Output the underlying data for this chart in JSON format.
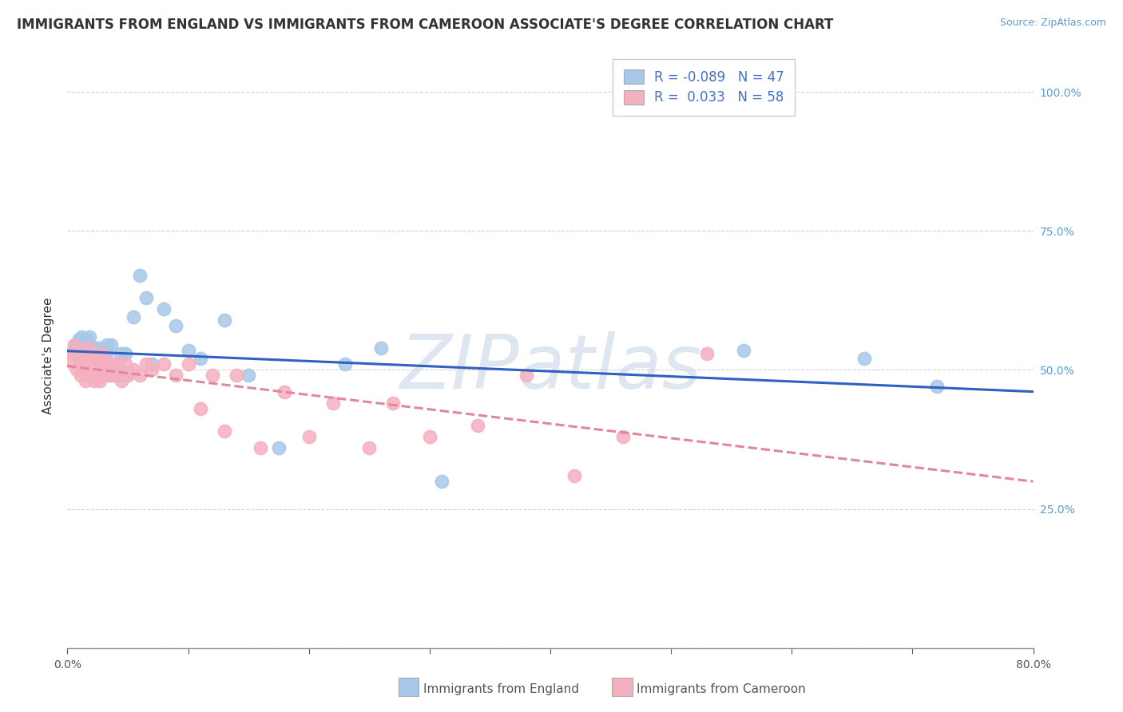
{
  "title": "IMMIGRANTS FROM ENGLAND VS IMMIGRANTS FROM CAMEROON ASSOCIATE'S DEGREE CORRELATION CHART",
  "source_text": "Source: ZipAtlas.com",
  "ylabel": "Associate's Degree",
  "xlim": [
    0.0,
    0.8
  ],
  "ylim": [
    0.0,
    1.05
  ],
  "legend_england_R": "-0.089",
  "legend_england_N": "47",
  "legend_cameroon_R": "0.033",
  "legend_cameroon_N": "58",
  "england_scatter_color": "#a8c8e8",
  "cameroon_scatter_color": "#f5b0c0",
  "england_line_color": "#3060c0",
  "cameroon_line_color": "#e08898",
  "watermark": "ZIPatlas",
  "england_x": [
    0.005,
    0.007,
    0.01,
    0.012,
    0.013,
    0.015,
    0.016,
    0.018,
    0.02,
    0.021,
    0.022,
    0.023,
    0.024,
    0.025,
    0.026,
    0.028,
    0.03,
    0.031,
    0.032,
    0.033,
    0.034,
    0.035,
    0.036,
    0.038,
    0.04,
    0.042,
    0.044,
    0.046,
    0.048,
    0.05,
    0.055,
    0.06,
    0.065,
    0.07,
    0.08,
    0.09,
    0.1,
    0.11,
    0.13,
    0.15,
    0.175,
    0.23,
    0.26,
    0.31,
    0.56,
    0.66,
    0.72
  ],
  "england_y": [
    0.535,
    0.545,
    0.555,
    0.56,
    0.52,
    0.54,
    0.555,
    0.56,
    0.53,
    0.51,
    0.525,
    0.54,
    0.49,
    0.51,
    0.54,
    0.49,
    0.53,
    0.51,
    0.53,
    0.545,
    0.49,
    0.51,
    0.545,
    0.5,
    0.49,
    0.51,
    0.53,
    0.49,
    0.53,
    0.495,
    0.595,
    0.67,
    0.63,
    0.51,
    0.61,
    0.58,
    0.535,
    0.52,
    0.59,
    0.49,
    0.36,
    0.51,
    0.54,
    0.3,
    0.535,
    0.52,
    0.47
  ],
  "cameroon_x": [
    0.003,
    0.005,
    0.006,
    0.008,
    0.01,
    0.011,
    0.012,
    0.013,
    0.014,
    0.015,
    0.016,
    0.017,
    0.018,
    0.019,
    0.02,
    0.021,
    0.022,
    0.023,
    0.024,
    0.025,
    0.026,
    0.027,
    0.028,
    0.029,
    0.03,
    0.031,
    0.032,
    0.034,
    0.036,
    0.038,
    0.04,
    0.042,
    0.045,
    0.048,
    0.05,
    0.055,
    0.06,
    0.065,
    0.07,
    0.08,
    0.09,
    0.1,
    0.11,
    0.12,
    0.13,
    0.14,
    0.16,
    0.18,
    0.2,
    0.22,
    0.25,
    0.27,
    0.3,
    0.34,
    0.38,
    0.42,
    0.46,
    0.53
  ],
  "cameroon_y": [
    0.515,
    0.53,
    0.545,
    0.5,
    0.52,
    0.49,
    0.51,
    0.53,
    0.5,
    0.48,
    0.51,
    0.54,
    0.49,
    0.51,
    0.53,
    0.5,
    0.48,
    0.51,
    0.53,
    0.49,
    0.51,
    0.48,
    0.51,
    0.53,
    0.5,
    0.49,
    0.51,
    0.5,
    0.49,
    0.51,
    0.49,
    0.51,
    0.48,
    0.51,
    0.49,
    0.5,
    0.49,
    0.51,
    0.5,
    0.51,
    0.49,
    0.51,
    0.43,
    0.49,
    0.39,
    0.49,
    0.36,
    0.46,
    0.38,
    0.44,
    0.36,
    0.44,
    0.38,
    0.4,
    0.49,
    0.31,
    0.38,
    0.53
  ],
  "yticks": [
    0.0,
    0.25,
    0.5,
    0.75,
    1.0
  ],
  "ytick_labels_right": [
    "",
    "25.0%",
    "50.0%",
    "75.0%",
    "100.0%"
  ],
  "title_fontsize": 12,
  "legend_fontsize": 12,
  "tick_fontsize": 10,
  "ylabel_fontsize": 11,
  "background_color": "#ffffff",
  "grid_color": "#cccccc",
  "tick_color": "#5b9bd5",
  "r_value_color": "#4472c4",
  "bottom_label_england": "Immigrants from England",
  "bottom_label_cameroon": "Immigrants from Cameroon"
}
